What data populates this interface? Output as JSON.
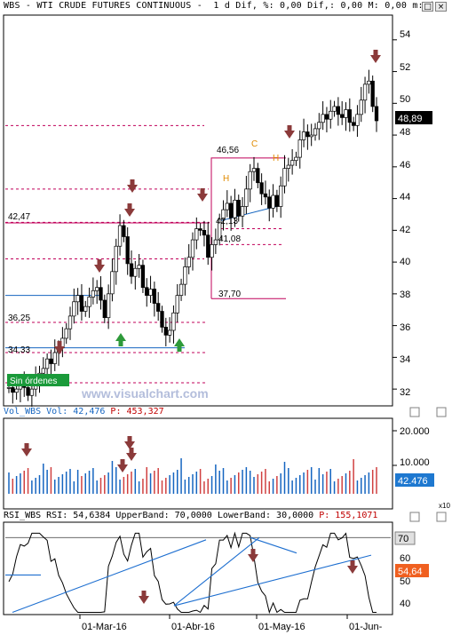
{
  "window": {
    "title": "WBS - WTI CRUDE FUTURES CONTINUOUS -  1 d Dif, %: 0,00 Dif,: 0,00 M: 0,00 m: (",
    "buttons": [
      "□",
      "×"
    ]
  },
  "watermark": "www.visualchart.com",
  "price_panel": {
    "type": "candlestick",
    "y_ticks": [
      "54",
      "52",
      "50",
      "48",
      "46",
      "44",
      "42",
      "40",
      "38",
      "36",
      "34",
      "32"
    ],
    "last_price": "48,89",
    "levels": [
      "46,56",
      "42,47",
      "41,08",
      "42,13",
      "37,70",
      "36,25",
      "34,33"
    ],
    "pattern_letters": [
      "C",
      "H",
      "H"
    ],
    "badge": "Sin órdenes"
  },
  "volume_panel": {
    "header": {
      "prefix": "Vol_WBS Vol: ",
      "value": "42,476",
      "p_label": " P: ",
      "p_value": "453,327"
    },
    "y_ticks": [
      "20.000",
      "10.000"
    ],
    "last_value": "42.476",
    "multiplier": "x10"
  },
  "rsi_panel": {
    "header": {
      "prefix": "RSI_WBS RSI: 54,6384 UpperBand: 70,0000 LowerBand: 30,0000 ",
      "p_label": "P: ",
      "p_value": "155,1071"
    },
    "y_ticks": [
      "60",
      "50",
      "40"
    ],
    "upper_band": "70",
    "last_value": "54,64"
  },
  "x_axis": {
    "labels": [
      "01-Mar-16",
      "01-Abr-16",
      "01-May-16",
      "01-Jun-"
    ]
  },
  "colors": {
    "up_candle": "#ffffff",
    "down_candle": "#000000",
    "signal_down": "#8b3a3a",
    "signal_up": "#2e9a3a",
    "resistance": "#c0005a",
    "support_line": "#1565c0",
    "volume_up": "#1565c0",
    "volume_down": "#d04040",
    "rsi_line": "#000000",
    "trend_line": "#1e6fd0",
    "badge_bg": "#1a9a3a",
    "last_price_bg": "#000000",
    "vol_label_bg": "#1e78d0",
    "rsi_label_bg": "#f06020"
  },
  "chart_data": [
    {
      "type": "candlestick",
      "ylim": [
        31,
        55.5
      ],
      "y_ticks": [
        54,
        52,
        50,
        48,
        46,
        44,
        42,
        40,
        38,
        36,
        34,
        32
      ],
      "x_labels": [
        "01-Mar-16",
        "01-Abr-16",
        "01-May-16",
        "01-Jun-"
      ],
      "last_price": 48.89,
      "closes": [
        32.1,
        31.8,
        32.0,
        32.4,
        32.1,
        31.6,
        32.0,
        32.6,
        33.0,
        33.3,
        33.9,
        33.6,
        34.3,
        34.6,
        35.2,
        35.8,
        36.6,
        37.5,
        37.9,
        36.9,
        37.2,
        37.8,
        38.2,
        38.4,
        37.6,
        36.5,
        38.0,
        39.4,
        41.0,
        42.3,
        41.6,
        39.9,
        39.1,
        39.6,
        39.8,
        38.4,
        37.9,
        38.3,
        37.4,
        36.9,
        35.9,
        35.4,
        35.7,
        36.8,
        37.9,
        38.6,
        39.7,
        40.3,
        41.4,
        42.1,
        42.0,
        41.7,
        40.3,
        41.1,
        41.4,
        42.7,
        43.3,
        43.7,
        42.8,
        43.9,
        42.9,
        43.5,
        44.6,
        45.7,
        45.9,
        45.0,
        44.3,
        44.1,
        43.4,
        44.2,
        43.5,
        44.8,
        45.9,
        46.1,
        46.4,
        46.6,
        47.7,
        48.2,
        47.9,
        48.0,
        48.4,
        48.8,
        49.3,
        49.0,
        49.5,
        49.8,
        49.3,
        49.1,
        49.6,
        48.8,
        48.6,
        49.3,
        50.2,
        51.2,
        51.4,
        49.8,
        48.9
      ],
      "signals_down": 7,
      "signals_up": 2
    },
    {
      "type": "bar",
      "series": [
        {
          "name": "Vol",
          "last_value": 42476
        }
      ],
      "y_ticks": [
        20000,
        10000
      ],
      "multiplier": "x10"
    },
    {
      "type": "line",
      "series": [
        {
          "name": "RSI",
          "last_value": 54.6384
        }
      ],
      "upper_band": 70,
      "lower_band": 30,
      "y_ticks": [
        60,
        50,
        40
      ]
    }
  ]
}
